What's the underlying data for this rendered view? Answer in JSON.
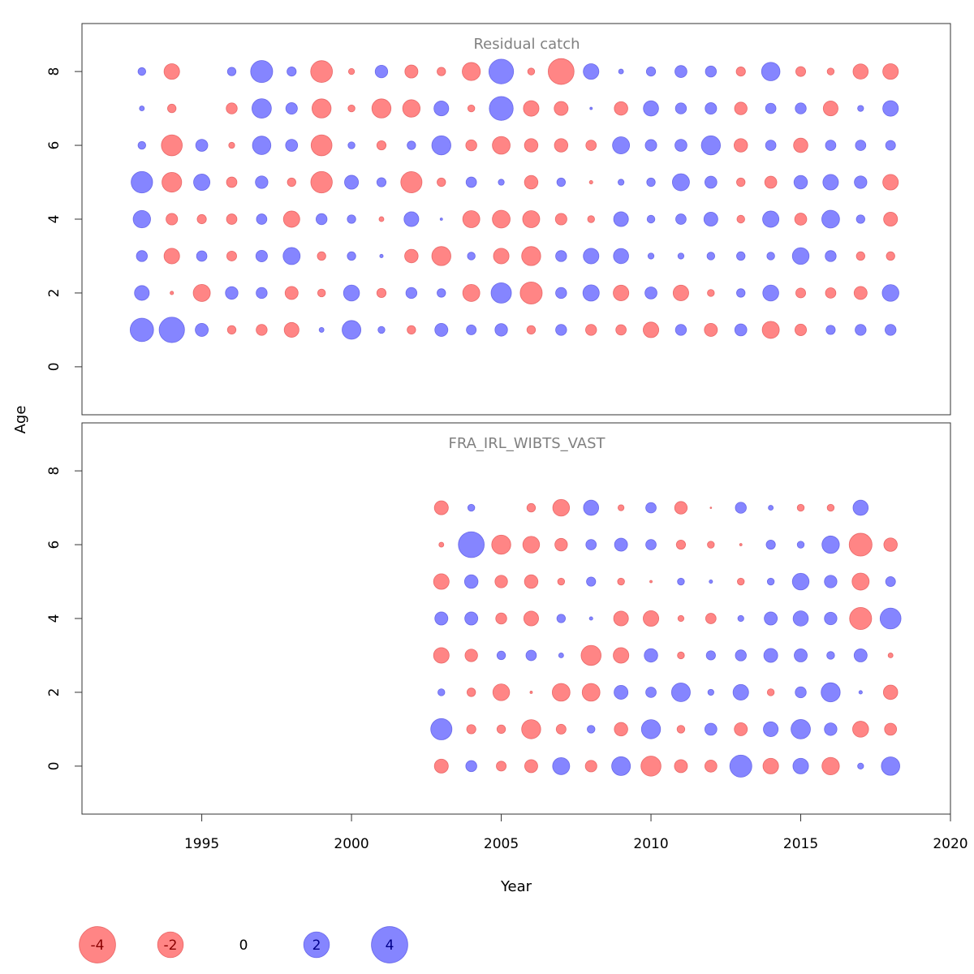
{
  "figure": {
    "xlabel": "Year",
    "ylabel": "Age",
    "x_ticks": [
      1995,
      2000,
      2005,
      2010,
      2015,
      2020
    ],
    "y_ticks": [
      0,
      2,
      4,
      6,
      8
    ],
    "colors": {
      "negative": "#ff6666",
      "positive": "#6666ff",
      "axis": "#333333",
      "title": "#808080"
    },
    "legend": {
      "position": "bottom-left",
      "values": [
        -4,
        -2,
        0,
        2,
        4
      ],
      "labels": [
        "-4",
        "-2",
        "0",
        "2",
        "4"
      ]
    }
  },
  "chart_data": [
    {
      "type": "scatter",
      "title": "Residual catch",
      "xlim": [
        1991,
        2020
      ],
      "ylim": [
        -1.3,
        9.3
      ],
      "ages": [
        1,
        2,
        3,
        4,
        5,
        6,
        7,
        8
      ],
      "years": [
        1993,
        1994,
        1995,
        1996,
        1997,
        1998,
        1999,
        2000,
        2001,
        2002,
        2003,
        2004,
        2005,
        2006,
        2007,
        2008,
        2009,
        2010,
        2011,
        2012,
        2013,
        2014,
        2015,
        2016,
        2017,
        2018
      ],
      "residuals": [
        [
          4.5,
          5.3,
          1.4,
          -0.6,
          -1.0,
          -1.8,
          0.2,
          2.9,
          0.4,
          -0.6,
          1.4,
          0.8,
          1.3,
          -0.6,
          1.0,
          -1.0,
          -0.9,
          -2.0,
          1.0,
          -1.4,
          1.2,
          -2.4,
          -1.1,
          0.7,
          1.0,
          1.0
        ],
        [
          1.8,
          -0.1,
          -2.4,
          1.3,
          1.0,
          -1.4,
          -0.5,
          2.1,
          -0.7,
          1.0,
          0.6,
          -2.4,
          3.4,
          -4.0,
          1.0,
          2.2,
          -2.0,
          1.2,
          -2.0,
          -0.4,
          0.6,
          2.1,
          -0.8,
          -0.9,
          -1.4,
          2.3
        ],
        [
          1.0,
          -2.0,
          0.9,
          -0.8,
          1.1,
          2.4,
          -0.6,
          0.6,
          0.1,
          -1.5,
          -3.0,
          0.5,
          -2.0,
          -3.0,
          1.0,
          2.0,
          1.9,
          0.3,
          0.3,
          0.5,
          0.6,
          0.5,
          2.3,
          1.0,
          -0.6,
          -0.6
        ],
        [
          2.5,
          -1.1,
          -0.7,
          -0.9,
          0.9,
          -2.2,
          1.0,
          0.6,
          -0.2,
          1.8,
          0.05,
          -2.4,
          -2.6,
          -2.4,
          -1.1,
          -0.4,
          1.8,
          0.5,
          0.9,
          1.6,
          -0.5,
          2.2,
          -1.2,
          2.6,
          0.6,
          -1.6
        ],
        [
          3.8,
          -3.2,
          2.2,
          -0.9,
          1.3,
          -0.6,
          -3.8,
          1.6,
          0.7,
          -3.7,
          -0.6,
          0.9,
          0.3,
          -1.5,
          0.6,
          -0.1,
          0.3,
          0.6,
          2.4,
          1.2,
          -0.6,
          -1.2,
          1.5,
          2.0,
          1.3,
          -2.0
        ],
        [
          0.5,
          -3.6,
          1.2,
          -0.3,
          2.8,
          1.2,
          -3.6,
          0.4,
          -0.7,
          0.6,
          3.0,
          -1.0,
          -2.6,
          -1.5,
          -1.5,
          -0.9,
          2.4,
          1.1,
          1.2,
          3.0,
          -1.5,
          0.9,
          -1.7,
          0.9,
          0.9,
          0.8
        ],
        [
          0.2,
          -0.6,
          0.0,
          -1.0,
          3.1,
          1.1,
          -3.0,
          -0.4,
          -3.0,
          -2.5,
          1.8,
          -0.4,
          4.7,
          -2.0,
          -1.6,
          0.05,
          -1.5,
          1.9,
          1.0,
          1.1,
          -1.3,
          0.9,
          1.0,
          -1.8,
          0.3,
          2.0
        ],
        [
          0.5,
          -2.0,
          0.0,
          0.6,
          4.0,
          0.7,
          -3.9,
          -0.3,
          1.3,
          -1.4,
          -0.6,
          -2.7,
          5.0,
          -0.4,
          -5.5,
          2.0,
          0.2,
          0.7,
          1.2,
          1.0,
          -0.7,
          2.8,
          -0.8,
          -0.4,
          -1.9,
          -2.0
        ]
      ]
    },
    {
      "type": "scatter",
      "title": "FRA_IRL_WIBTS_VAST",
      "xlim": [
        1991,
        2020
      ],
      "ylim": [
        -1.3,
        9.3
      ],
      "ages": [
        0,
        1,
        2,
        3,
        4,
        5,
        6,
        7
      ],
      "years": [
        2003,
        2004,
        2005,
        2006,
        2007,
        2008,
        2009,
        2010,
        2011,
        2012,
        2013,
        2014,
        2015,
        2016,
        2017,
        2018
      ],
      "residuals": [
        [
          -1.6,
          1.0,
          -0.8,
          -1.4,
          2.4,
          -1.1,
          2.9,
          -3.3,
          -1.4,
          -1.2,
          4.0,
          -2.0,
          2.0,
          -2.5,
          0.3,
          2.8
        ],
        [
          3.7,
          -0.7,
          -0.6,
          -3.0,
          -0.8,
          0.5,
          -1.5,
          3.0,
          -0.5,
          1.2,
          -1.4,
          1.8,
          3.1,
          1.3,
          -2.1,
          -1.2
        ],
        [
          0.4,
          -0.6,
          -2.3,
          -0.05,
          -2.6,
          -2.6,
          1.6,
          0.9,
          2.9,
          0.3,
          2.0,
          -0.4,
          1.0,
          3.0,
          0.1,
          -1.7
        ],
        [
          -2.0,
          -1.3,
          0.6,
          0.9,
          0.2,
          -3.3,
          -2.0,
          1.5,
          -0.4,
          0.7,
          1.0,
          1.6,
          1.4,
          0.5,
          1.4,
          -0.2
        ],
        [
          1.4,
          1.4,
          -1.0,
          -1.8,
          0.6,
          0.1,
          -1.8,
          -2.0,
          -0.3,
          -0.9,
          0.3,
          1.4,
          1.9,
          1.3,
          -4.0,
          3.6
        ],
        [
          -2.0,
          1.5,
          -1.3,
          -1.5,
          -0.4,
          0.7,
          -0.4,
          -0.05,
          0.4,
          0.1,
          -0.4,
          0.4,
          2.3,
          1.3,
          -2.4,
          0.8
        ],
        [
          -0.2,
          5.5,
          -3.0,
          -2.3,
          -1.3,
          0.9,
          1.4,
          0.9,
          -0.7,
          -0.4,
          -0.05,
          0.7,
          0.4,
          2.5,
          -4.3,
          -1.5
        ],
        [
          -1.6,
          0.4,
          0.0,
          -0.6,
          -2.3,
          1.9,
          -0.3,
          0.9,
          -1.3,
          -0.02,
          1.0,
          0.2,
          -0.4,
          -0.4,
          1.9,
          0.0
        ]
      ]
    }
  ]
}
